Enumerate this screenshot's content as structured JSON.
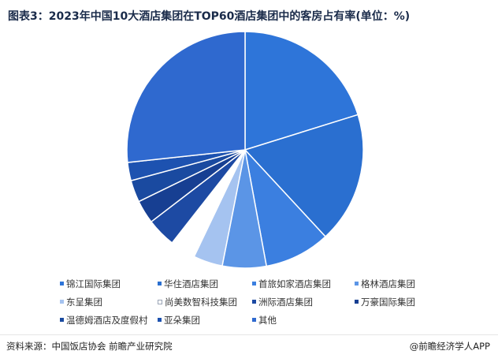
{
  "title": "图表3：2023年中国10大酒店集团在TOP60酒店集团中的客房占有率(单位：%)",
  "footer": {
    "source": "资料来源：中国饭店协会 前瞻产业研究院",
    "brand": "@前瞻经济学人APP"
  },
  "chart_data": {
    "type": "pie",
    "title": "图表3：2023年中国10大酒店集团在TOP60酒店集团中的客房占有率(单位：%)",
    "start_angle_deg": 0,
    "direction": "clockwise",
    "legend_position": "bottom",
    "categories": [
      "锦江国际集团",
      "华住酒店集团",
      "首旅如家酒店集团",
      "格林酒店集团",
      "东呈集团",
      "尚美数智科技集团",
      "洲际酒店集团",
      "万豪国际集团",
      "温德姆酒店及度假村",
      "亚朵集团",
      "其他"
    ],
    "values": [
      20.2,
      17.9,
      9.0,
      6.0,
      4.0,
      3.5,
      4.0,
      3.2,
      3.0,
      2.5,
      26.7
    ],
    "colors": [
      "#2e75d9",
      "#2a6fd0",
      "#3b7fe0",
      "#5b95e6",
      "#a5c3f0",
      "#ffffff",
      "#1d4aa3",
      "#173f92",
      "#1a4aa0",
      "#1d52b0",
      "#2f69cf"
    ],
    "legend_outline": [
      false,
      false,
      false,
      false,
      false,
      true,
      false,
      false,
      false,
      false,
      false
    ]
  }
}
